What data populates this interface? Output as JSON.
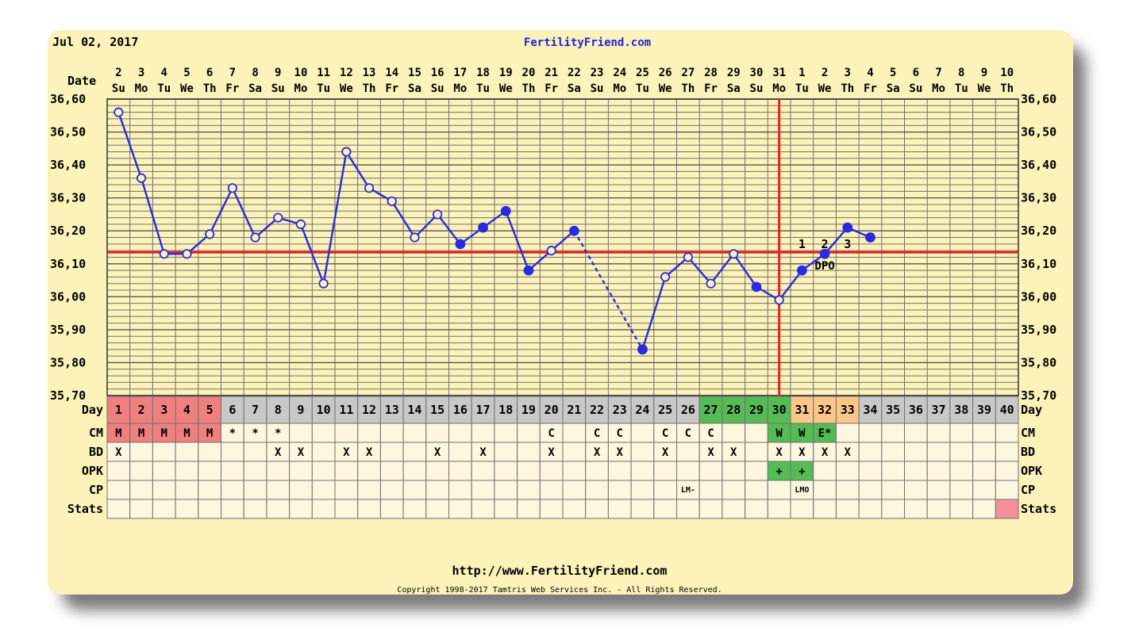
{
  "header": {
    "date": "Jul 02, 2017",
    "site": "FertilityFriend.com"
  },
  "footer": {
    "url": "http://www.FertilityFriend.com",
    "copyright": "Copyright 1998-2017 Tamtris Web Services Inc. - All Rights Reserved."
  },
  "colors": {
    "line": "#2a2ae0",
    "coverline": "#e82020",
    "grid": "#707070",
    "period": "#f08080",
    "fertile": "#55bb55",
    "luteal": "#ffc68a",
    "gray": "#c8c8c8",
    "cell": "#fff6e0"
  },
  "chart_data": {
    "type": "line",
    "title": "",
    "ylim": [
      35.7,
      36.6
    ],
    "yticks": [
      "36,60",
      "36,50",
      "36,40",
      "36,30",
      "36,20",
      "36,10",
      "36,00",
      "35,90",
      "35,80",
      "35,70"
    ],
    "date_label": "Date",
    "dates": [
      "2",
      "3",
      "4",
      "5",
      "6",
      "7",
      "8",
      "9",
      "10",
      "11",
      "12",
      "13",
      "14",
      "15",
      "16",
      "17",
      "18",
      "19",
      "20",
      "21",
      "22",
      "23",
      "24",
      "25",
      "26",
      "27",
      "28",
      "29",
      "30",
      "31",
      "1",
      "2",
      "3",
      "4",
      "5",
      "6",
      "7",
      "8",
      "9",
      "10"
    ],
    "weekdays": [
      "Su",
      "Mo",
      "Tu",
      "We",
      "Th",
      "Fr",
      "Sa",
      "Su",
      "Mo",
      "Tu",
      "We",
      "Th",
      "Fr",
      "Sa",
      "Su",
      "Mo",
      "Tu",
      "We",
      "Th",
      "Fr",
      "Sa",
      "Su",
      "Mo",
      "Tu",
      "We",
      "Th",
      "Fr",
      "Sa",
      "Su",
      "Mo",
      "Tu",
      "We",
      "Th",
      "Fr",
      "Sa",
      "Su",
      "Mo",
      "Tu",
      "We",
      "Th"
    ],
    "temps": [
      36.56,
      36.36,
      36.13,
      36.13,
      36.19,
      36.33,
      36.18,
      36.24,
      36.22,
      36.04,
      36.44,
      36.33,
      36.29,
      36.18,
      36.25,
      36.16,
      36.21,
      36.26,
      36.08,
      36.14,
      36.2,
      null,
      null,
      35.84,
      36.06,
      36.12,
      36.04,
      36.13,
      36.03,
      35.99,
      36.08,
      36.13,
      36.21,
      36.18
    ],
    "filled": [
      false,
      false,
      false,
      false,
      false,
      false,
      false,
      false,
      false,
      false,
      false,
      false,
      false,
      false,
      false,
      true,
      true,
      true,
      true,
      false,
      true,
      null,
      null,
      true,
      false,
      false,
      false,
      false,
      true,
      false,
      true,
      true,
      true,
      true
    ],
    "gap": [
      21,
      24
    ],
    "coverline": 36.135,
    "ovulation_day": 30,
    "dpo_numbers": [
      "1",
      "2",
      "3"
    ],
    "dpo_label": "DPO",
    "rows": {
      "day": {
        "label": "Day",
        "values": [
          "1",
          "2",
          "3",
          "4",
          "5",
          "6",
          "7",
          "8",
          "9",
          "10",
          "11",
          "12",
          "13",
          "14",
          "15",
          "16",
          "17",
          "18",
          "19",
          "20",
          "21",
          "22",
          "23",
          "24",
          "25",
          "26",
          "27",
          "28",
          "29",
          "30",
          "31",
          "32",
          "33",
          "34",
          "35",
          "36",
          "37",
          "38",
          "39",
          "40"
        ]
      },
      "cm": {
        "label": "CM",
        "values": [
          "M",
          "M",
          "M",
          "M",
          "M",
          "*",
          "*",
          "*",
          "",
          "",
          "",
          "",
          "",
          "",
          "",
          "",
          "",
          "",
          "",
          "C",
          "",
          "C",
          "C",
          "",
          "C",
          "C",
          "C",
          "",
          "",
          "W",
          "W",
          "E*",
          "",
          "",
          "",
          "",
          "",
          "",
          "",
          ""
        ]
      },
      "bd": {
        "label": "BD",
        "values": [
          "X",
          "",
          "",
          "",
          "",
          "",
          "",
          "X",
          "X",
          "",
          "X",
          "X",
          "",
          "",
          "X",
          "",
          "X",
          "",
          "",
          "X",
          "",
          "X",
          "X",
          "",
          "X",
          "",
          "X",
          "X",
          "",
          "X",
          "X",
          "X",
          "X",
          "",
          "",
          "",
          "",
          "",
          "",
          ""
        ]
      },
      "opk": {
        "label": "OPK",
        "values": [
          "",
          "",
          "",
          "",
          "",
          "",
          "",
          "",
          "",
          "",
          "",
          "",
          "",
          "",
          "",
          "",
          "",
          "",
          "",
          "",
          "",
          "",
          "",
          "",
          "",
          "",
          "",
          "",
          "",
          "+",
          "+",
          "",
          "",
          "",
          "",
          "",
          "",
          "",
          "",
          ""
        ]
      },
      "cp": {
        "label": "CP",
        "values": [
          "",
          "",
          "",
          "",
          "",
          "",
          "",
          "",
          "",
          "",
          "",
          "",
          "",
          "",
          "",
          "",
          "",
          "",
          "",
          "",
          "",
          "",
          "",
          "",
          "",
          "LM-",
          "",
          "",
          "",
          "",
          "LMO",
          "",
          "",
          "",
          "",
          "",
          "",
          "",
          "",
          ""
        ]
      },
      "stats": {
        "label": "Stats",
        "values": [
          "",
          "",
          "",
          "",
          "",
          "",
          "",
          "",
          "",
          "",
          "",
          "",
          "",
          "",
          "",
          "",
          "",
          "",
          "",
          "",
          "",
          "",
          "",
          "",
          "",
          "",
          "",
          "",
          "",
          "",
          "",
          "",
          "",
          "",
          "",
          "",
          "",
          "",
          "",
          ""
        ]
      }
    }
  }
}
